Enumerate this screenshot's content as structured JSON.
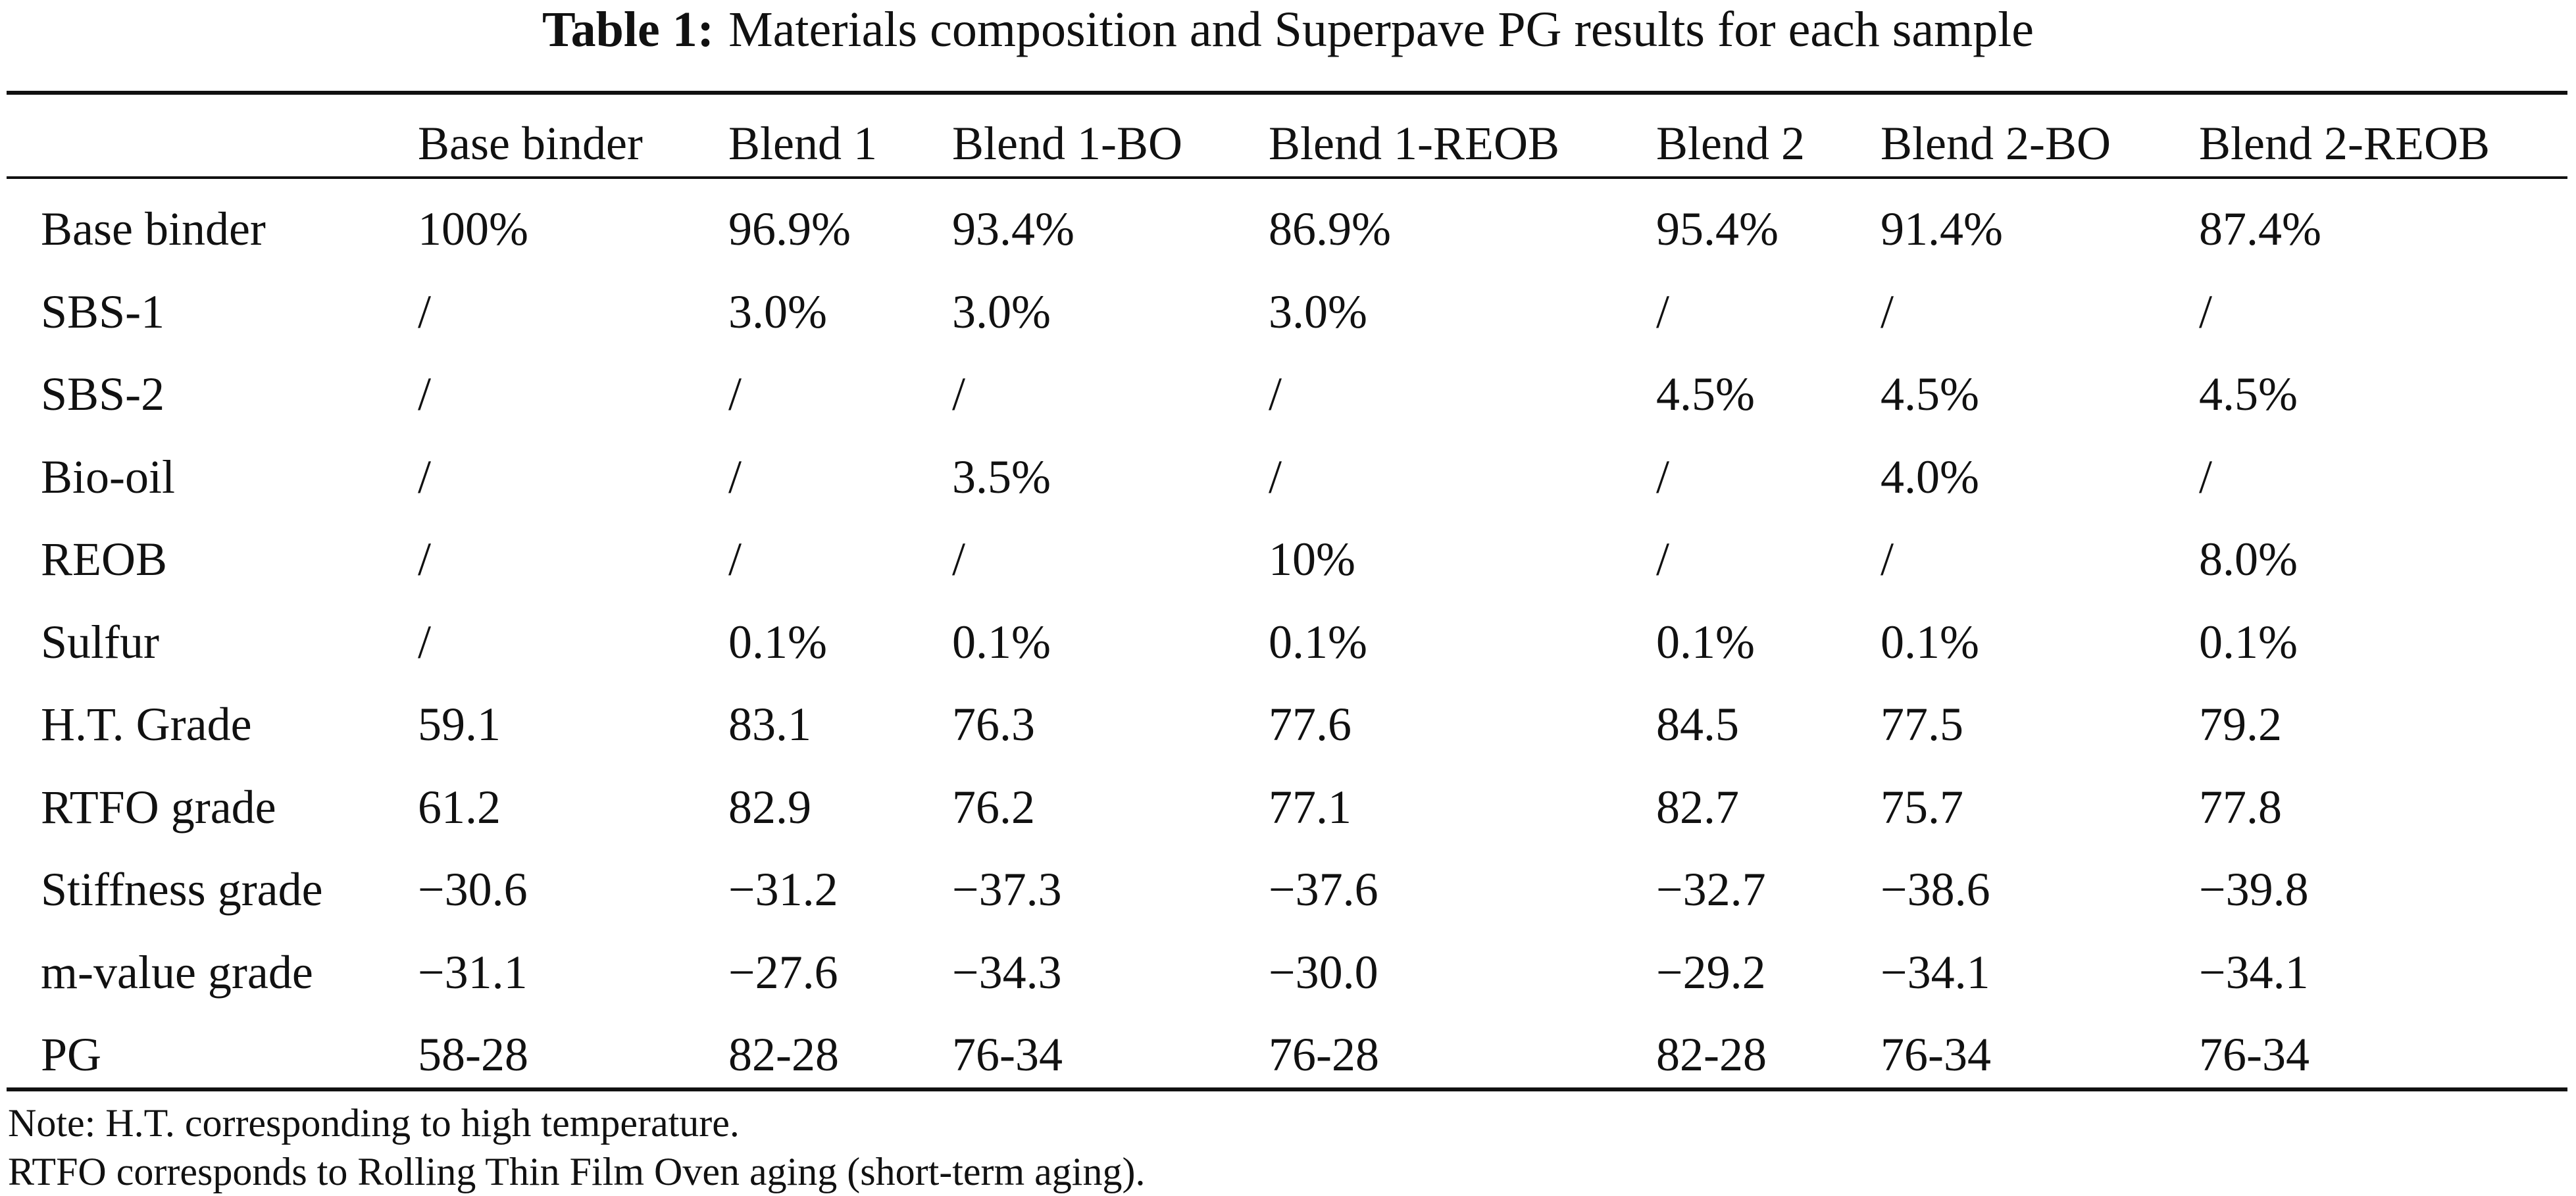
{
  "table": {
    "label": "Table 1:",
    "caption": "Materials composition and Superpave PG results for each sample",
    "header": [
      "",
      "Base binder",
      "Blend 1",
      "Blend 1-BO",
      "Blend 1-REOB",
      "Blend 2",
      "Blend 2-BO",
      "Blend 2-REOB"
    ],
    "rows": [
      [
        "Base binder",
        "100%",
        "96.9%",
        "93.4%",
        "86.9%",
        "95.4%",
        "91.4%",
        "87.4%"
      ],
      [
        "SBS-1",
        "/",
        "3.0%",
        "3.0%",
        "3.0%",
        "/",
        "/",
        "/"
      ],
      [
        "SBS-2",
        "/",
        "/",
        "/",
        "/",
        "4.5%",
        "4.5%",
        "4.5%"
      ],
      [
        "Bio-oil",
        "/",
        "/",
        "3.5%",
        "/",
        "/",
        "4.0%",
        "/"
      ],
      [
        "REOB",
        "/",
        "/",
        "/",
        "10%",
        "/",
        "/",
        "8.0%"
      ],
      [
        "Sulfur",
        "/",
        "0.1%",
        "0.1%",
        "0.1%",
        "0.1%",
        "0.1%",
        "0.1%"
      ],
      [
        "H.T. Grade",
        "59.1",
        "83.1",
        "76.3",
        "77.6",
        "84.5",
        "77.5",
        "79.2"
      ],
      [
        "RTFO grade",
        "61.2",
        "82.9",
        "76.2",
        "77.1",
        "82.7",
        "75.7",
        "77.8"
      ],
      [
        "Stiffness grade",
        "−30.6",
        "−31.2",
        "−37.3",
        "−37.6",
        "−32.7",
        "−38.6",
        "−39.8"
      ],
      [
        "m-value grade",
        "−31.1",
        "−27.6",
        "−34.3",
        "−30.0",
        "−29.2",
        "−34.1",
        "−34.1"
      ],
      [
        "PG",
        "58-28",
        "82-28",
        "76-34",
        "76-28",
        "82-28",
        "76-34",
        "76-34"
      ]
    ]
  },
  "notes": [
    "Note: H.T. corresponding to high temperature.",
    "RTFO corresponds to Rolling Thin Film Oven aging (short-term aging)."
  ]
}
